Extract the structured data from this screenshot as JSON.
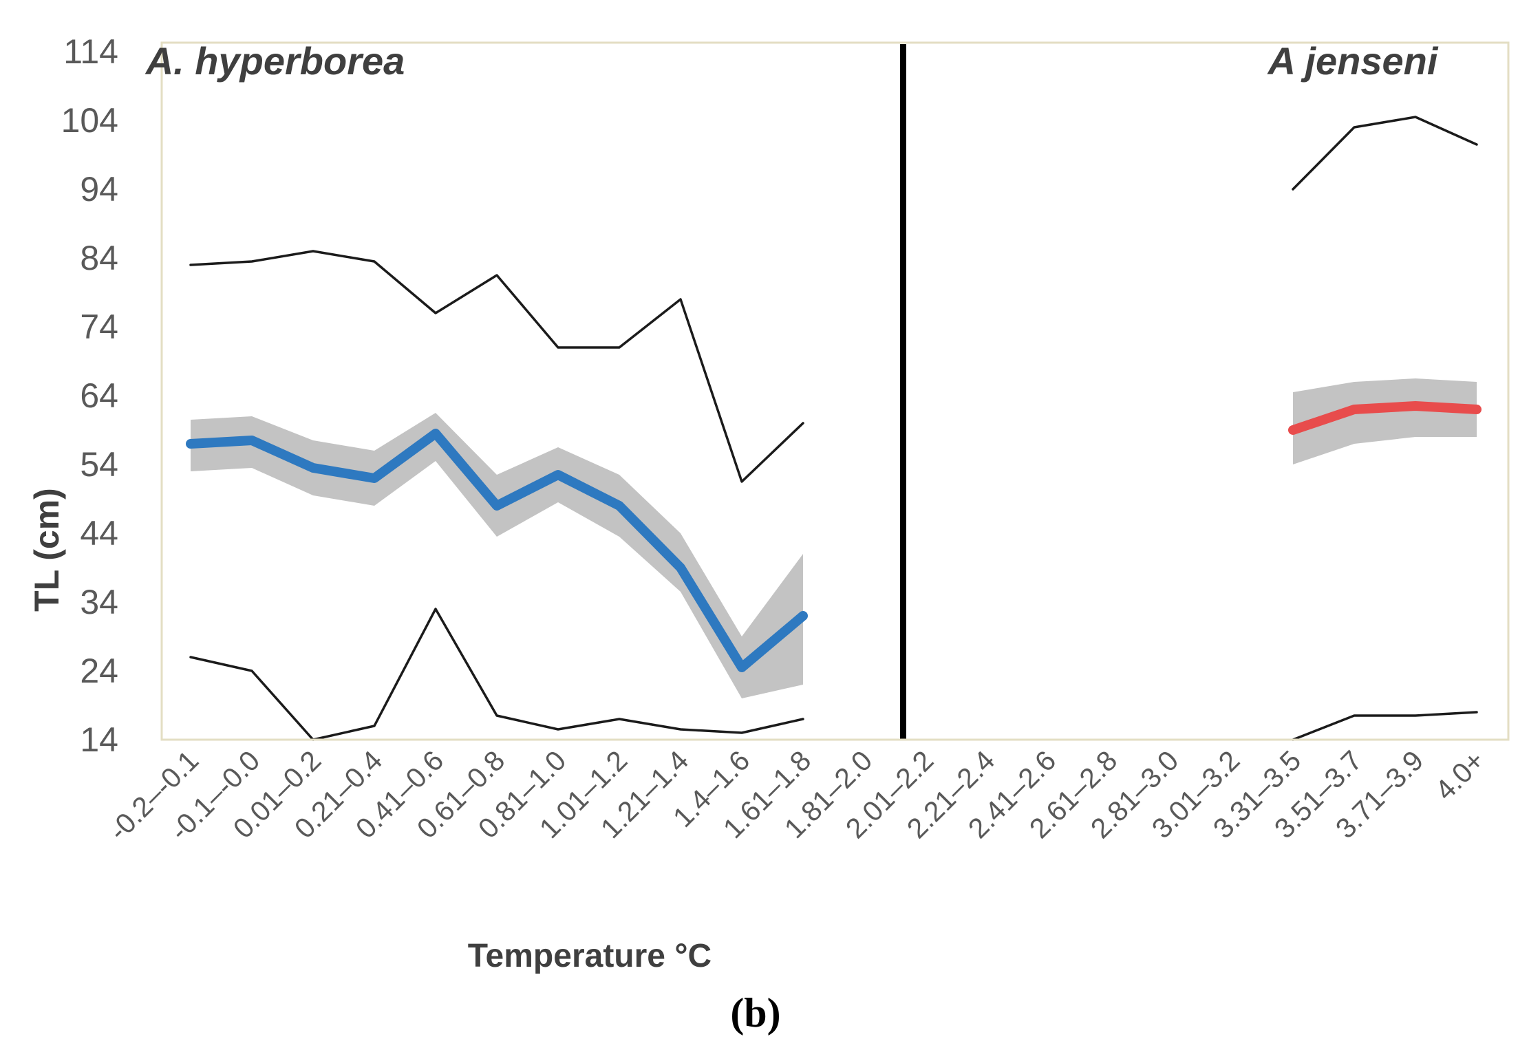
{
  "figure": {
    "left_panel_title": "A. hyperborea",
    "right_panel_title": "A jenseni",
    "y_axis_title": "TL (cm)",
    "x_axis_title": "Temperature °C",
    "caption": "(b)"
  },
  "chart_data": {
    "type": "line",
    "title": "",
    "xlabel": "Temperature °C",
    "ylabel": "TL (cm)",
    "ylim": [
      14,
      115.5
    ],
    "yticks": [
      114,
      104,
      94,
      84,
      74,
      64,
      54,
      44,
      34,
      24,
      14
    ],
    "grid": false,
    "legend": "none",
    "categories": [
      "-0.2–-0.1",
      "-0.1–-0.0",
      "0.01–0.2",
      "0.21–0.4",
      "0.41–0.6",
      "0.61–0.8",
      "0.81–1.0",
      "1.01–1.2",
      "1.21–1.4",
      "1.4–1.6",
      "1.61–1.8",
      "1.81–2.0",
      "2.01–2.2",
      "2.21–2.4",
      "2.41–2.6",
      "2.61–2.8",
      "2.81–3.0",
      "3.01–3.2",
      "3.31–3.5",
      "3.51–3.7",
      "3.71–3.9",
      "4.0+"
    ],
    "panel_divider_between": [
      "1.81–2.0",
      "2.01–2.2"
    ],
    "series": [
      {
        "name": "A. hyperborea upper limit",
        "role": "envelope",
        "color": "#1b1b1b",
        "width": 3.5,
        "start_index": 0,
        "values": [
          83,
          83.5,
          85,
          83.5,
          76,
          81.5,
          71,
          71,
          78,
          51.5,
          60
        ]
      },
      {
        "name": "A. hyperborea lower limit",
        "role": "envelope",
        "color": "#1b1b1b",
        "width": 3.5,
        "start_index": 0,
        "values": [
          26,
          24,
          14,
          16,
          33,
          17.5,
          15.5,
          17,
          15.5,
          15,
          17
        ]
      },
      {
        "name": "A. hyperborea mean TL",
        "role": "mean",
        "color": "#2e79c0",
        "width": 14,
        "start_index": 0,
        "values": [
          57,
          57.5,
          53.5,
          52,
          58.5,
          48,
          52.5,
          48,
          39,
          24.5,
          32
        ],
        "band_color": "#c3c3c3",
        "band_upper": [
          60.5,
          61,
          57.5,
          56,
          61.5,
          52.5,
          56.5,
          52.5,
          44,
          29,
          41
        ],
        "band_lower": [
          53,
          53.5,
          49.5,
          48,
          54.5,
          43.5,
          48.5,
          43.5,
          35.5,
          20,
          22
        ]
      },
      {
        "name": "A jenseni upper limit",
        "role": "envelope",
        "color": "#1b1b1b",
        "width": 3.5,
        "start_index": 18,
        "values": [
          94,
          103,
          104.5,
          100.5
        ]
      },
      {
        "name": "A jenseni lower limit",
        "role": "envelope",
        "color": "#1b1b1b",
        "width": 3.5,
        "start_index": 18,
        "values": [
          14,
          17.5,
          17.5,
          18
        ]
      },
      {
        "name": "A jenseni mean TL",
        "role": "mean",
        "color": "#e84c4c",
        "width": 14,
        "start_index": 18,
        "values": [
          59,
          62,
          62.5,
          62
        ],
        "band_color": "#c3c3c3",
        "band_upper": [
          64.5,
          66,
          66.5,
          66
        ],
        "band_lower": [
          54,
          57,
          58,
          58
        ]
      }
    ],
    "colors": {
      "hyperborea_mean": "#2e79c0",
      "jenseni_mean": "#e84c4c",
      "confidence_band": "#c3c3c3",
      "envelope_lines": "#1b1b1b",
      "panel_divider": "#000000",
      "plot_border": "#e3dec3",
      "tick_text": "#595959",
      "title_text": "#3f3f3f"
    }
  }
}
